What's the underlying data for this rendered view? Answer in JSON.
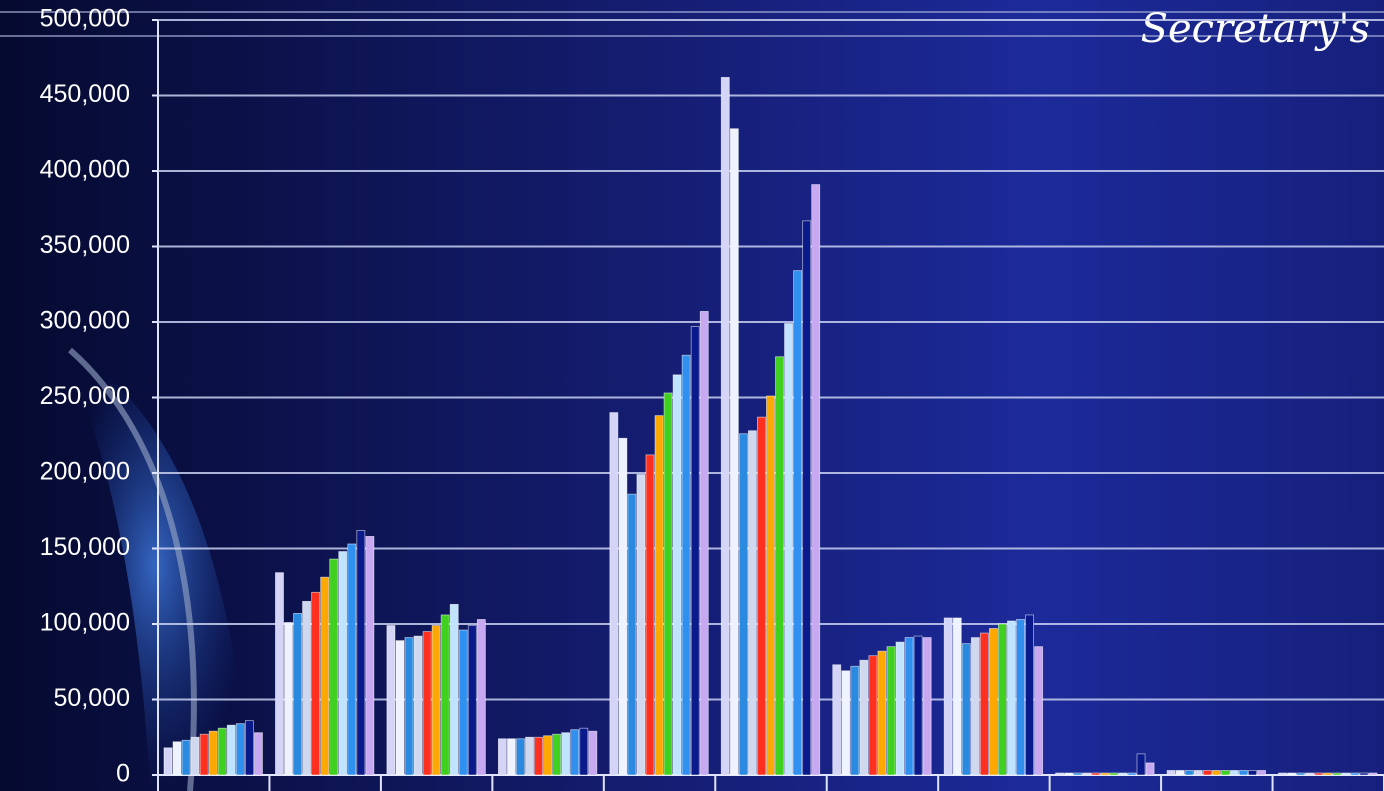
{
  "chart_data": {
    "type": "bar",
    "title": "Secretary's",
    "categories": [
      null,
      null,
      null,
      null,
      null,
      null,
      null,
      null,
      null,
      null,
      null
    ],
    "series": [
      {
        "color": "#d4d4f6",
        "values": [
          18000,
          134000,
          99000,
          24000,
          240000,
          462000,
          73000,
          104000,
          0,
          3000,
          1000
        ]
      },
      {
        "color": "#eef3ff",
        "values": [
          22000,
          101000,
          89000,
          24000,
          223000,
          428000,
          69000,
          104000,
          0,
          3000,
          1000
        ]
      },
      {
        "color": "#2a8ae0",
        "values": [
          23000,
          107000,
          91000,
          24000,
          186000,
          226000,
          72000,
          87000,
          0,
          3000,
          1000
        ]
      },
      {
        "color": "#d0d8f0",
        "values": [
          25000,
          115000,
          92000,
          25000,
          199000,
          228000,
          76000,
          91000,
          0,
          3000,
          1000
        ]
      },
      {
        "color": "#ff3020",
        "values": [
          27000,
          121000,
          95000,
          25000,
          212000,
          237000,
          79000,
          94000,
          0,
          3000,
          1000
        ]
      },
      {
        "color": "#ffa800",
        "values": [
          29000,
          131000,
          99000,
          26000,
          238000,
          251000,
          82000,
          97000,
          0,
          3000,
          1000
        ]
      },
      {
        "color": "#40d020",
        "values": [
          31000,
          143000,
          106000,
          27000,
          253000,
          277000,
          85000,
          100000,
          0,
          3000,
          1000
        ]
      },
      {
        "color": "#c0e4ff",
        "values": [
          33000,
          148000,
          113000,
          28000,
          265000,
          299000,
          88000,
          102000,
          0,
          3000,
          1000
        ]
      },
      {
        "color": "#3090f0",
        "values": [
          34000,
          153000,
          96000,
          30000,
          278000,
          334000,
          91000,
          103000,
          0,
          3000,
          1000
        ]
      },
      {
        "color": "#0a1a8a",
        "values": [
          36000,
          162000,
          99000,
          31000,
          297000,
          367000,
          92000,
          106000,
          14000,
          3000,
          1000
        ]
      },
      {
        "color": "#c8a8f0",
        "values": [
          28000,
          158000,
          103000,
          29000,
          307000,
          391000,
          91000,
          85000,
          8000,
          3000,
          1000
        ]
      }
    ],
    "ylim": [
      0,
      500000
    ],
    "yticks": [
      0,
      {
        "value": 50000,
        "label": "50,000"
      },
      {
        "value": 100000,
        "label": "100,000"
      },
      {
        "value": 150000,
        "label": "150,000"
      },
      {
        "value": 200000,
        "label": "200,000"
      },
      {
        "value": 250000,
        "label": "250,000"
      },
      {
        "value": 300000,
        "label": "300,000"
      },
      {
        "value": 350000,
        "label": "350,000"
      },
      {
        "value": 400000,
        "label": "400,000"
      },
      {
        "value": 450000,
        "label": "450,000"
      },
      {
        "value": 500000,
        "label": "500,000"
      }
    ],
    "grid": true
  }
}
